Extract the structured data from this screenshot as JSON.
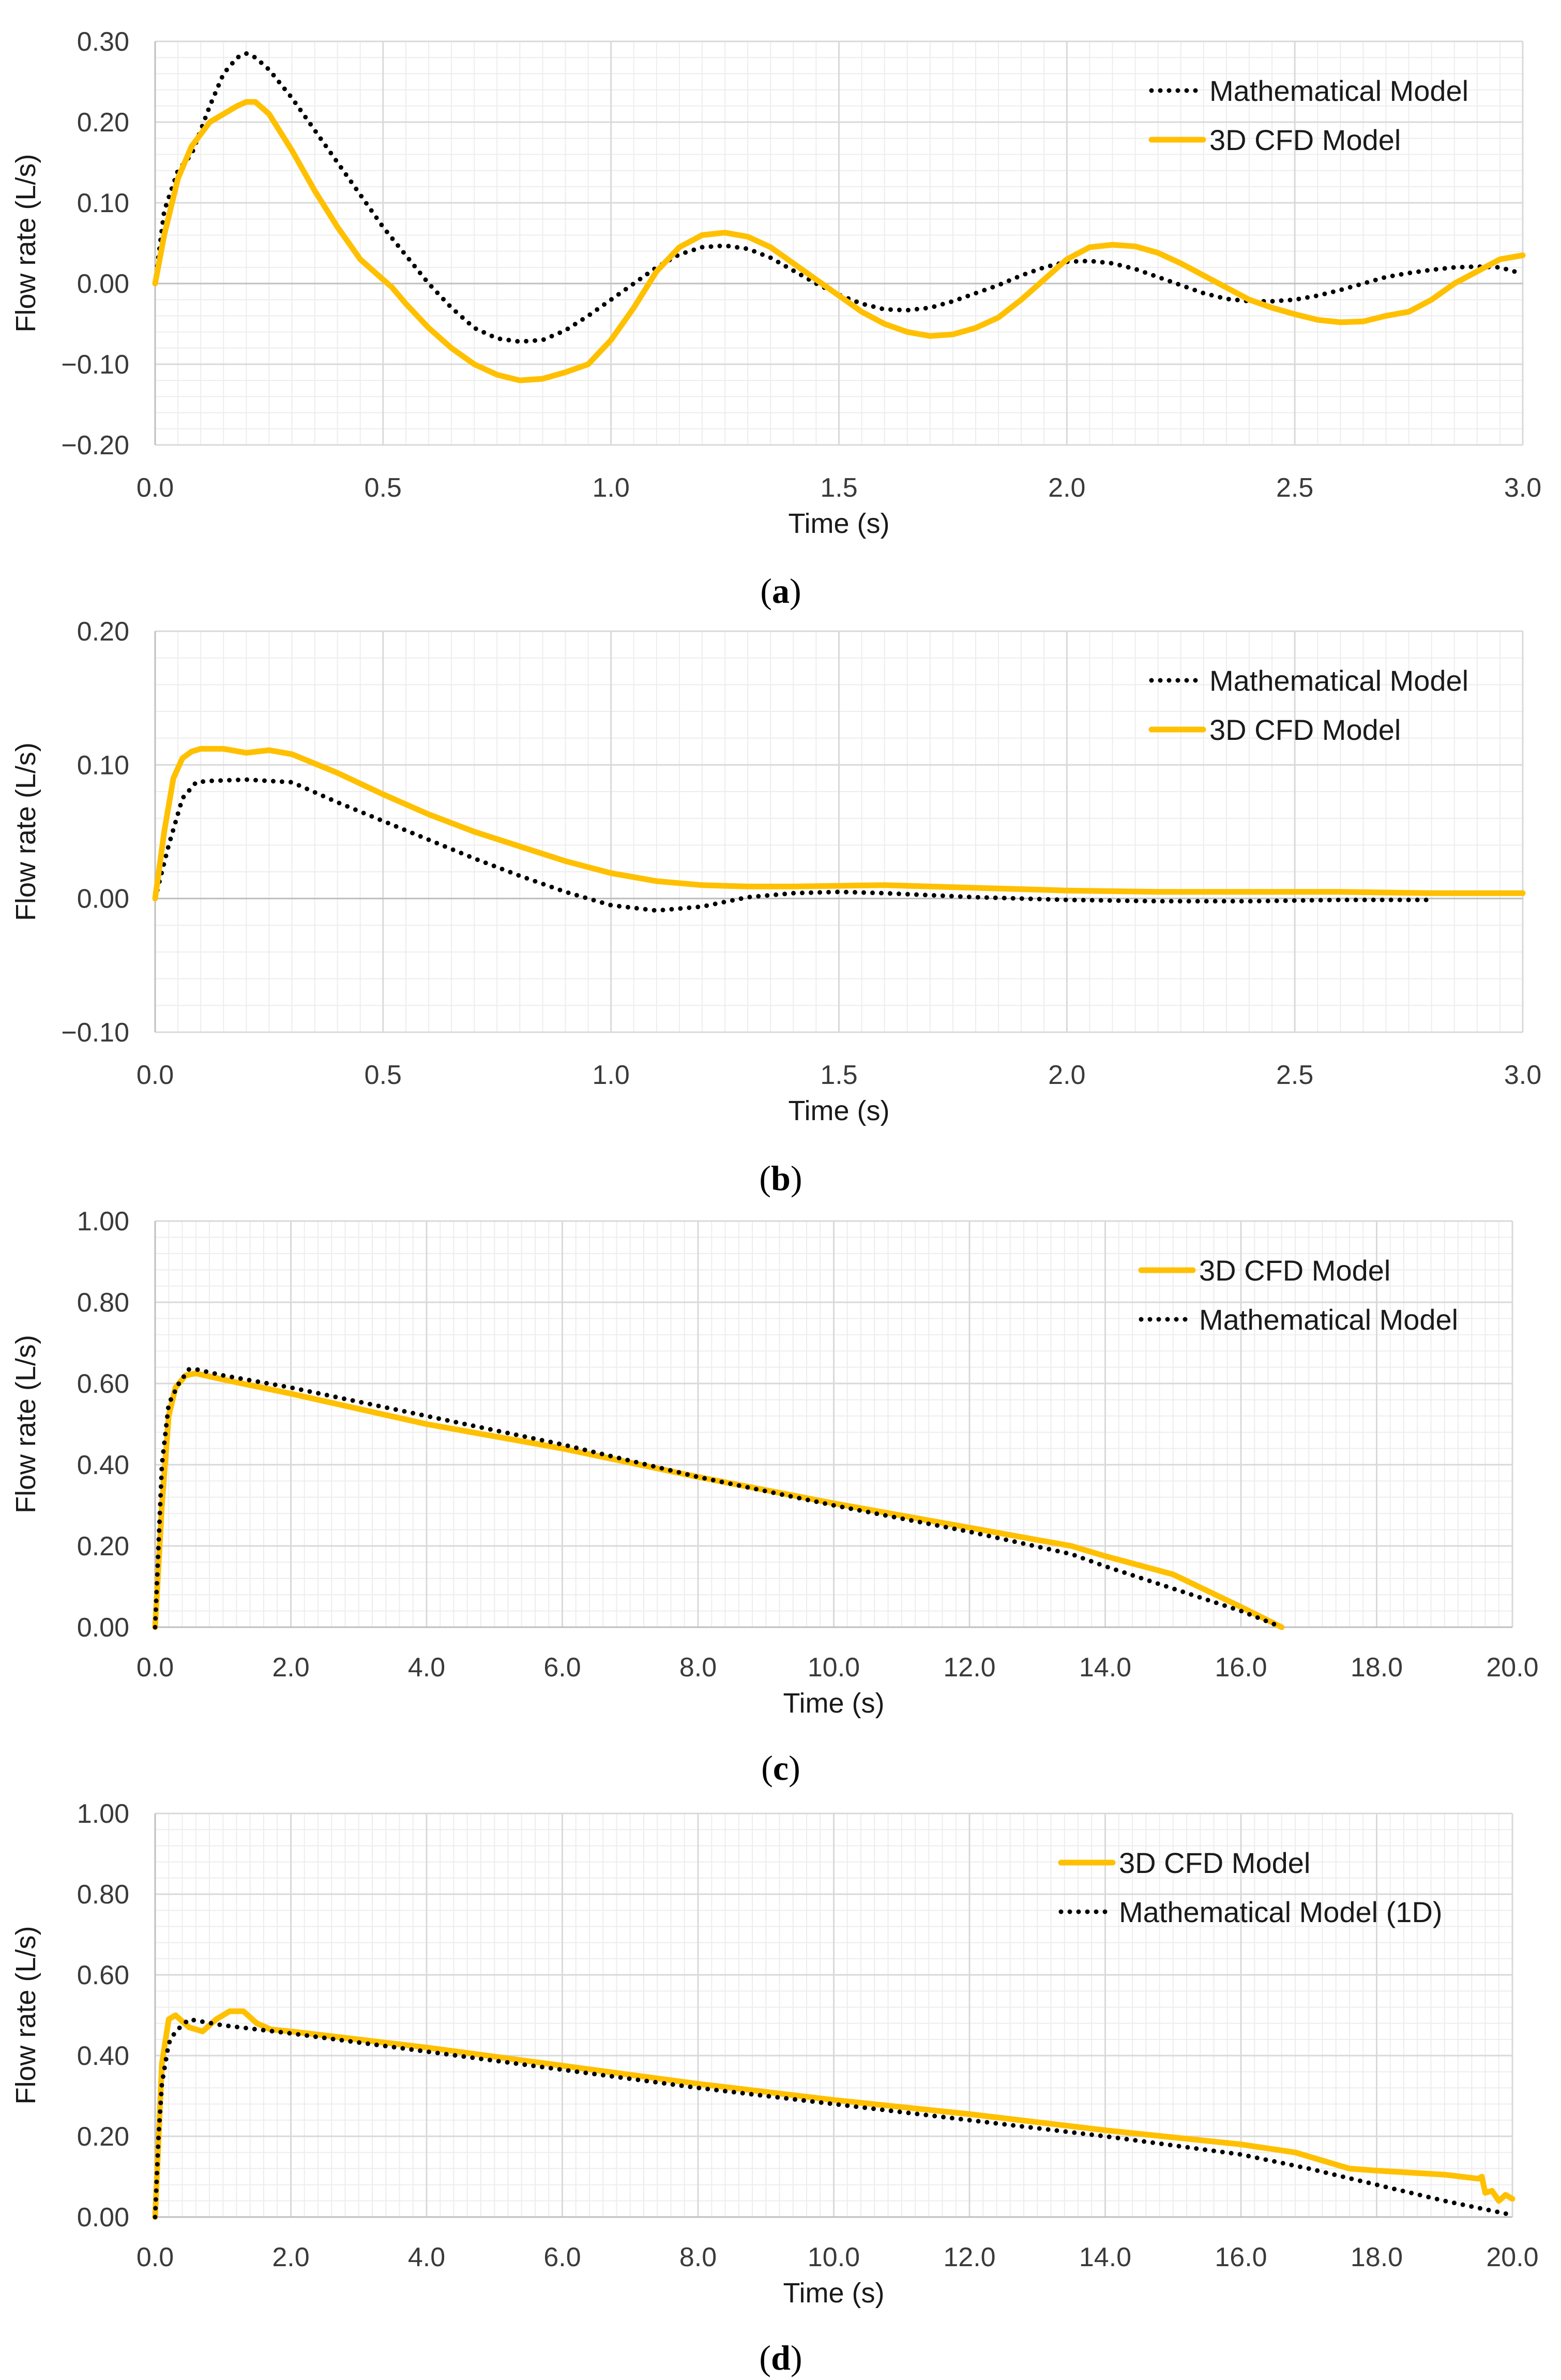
{
  "colors": {
    "cfd": "#FFC000",
    "math": "#000000",
    "grid_major": "#D9D9D9",
    "grid_minor": "#EDEDED",
    "axis": "#BFBFBF"
  },
  "chart_data": [
    {
      "type": "line",
      "caption": "a",
      "xlabel": "Time (s)",
      "ylabel": "Flow rate (L/s)",
      "xlim": [
        0,
        3
      ],
      "ylim": [
        -0.2,
        0.3
      ],
      "xticks": [
        "0.0",
        "0.5",
        "1.0",
        "1.5",
        "2.0",
        "2.5",
        "3.0"
      ],
      "yticks": [
        "−0.20",
        "−0.10",
        "0.00",
        "0.10",
        "0.20",
        "0.30"
      ],
      "legend_position": "top-right",
      "series": [
        {
          "name": "Mathematical Model",
          "style": "dotted",
          "x": [
            0,
            0.02,
            0.05,
            0.08,
            0.12,
            0.15,
            0.18,
            0.2,
            0.22,
            0.25,
            0.3,
            0.35,
            0.4,
            0.45,
            0.5,
            0.55,
            0.6,
            0.65,
            0.7,
            0.75,
            0.8,
            0.85,
            0.9,
            0.95,
            1.0,
            1.05,
            1.1,
            1.15,
            1.2,
            1.25,
            1.3,
            1.35,
            1.4,
            1.45,
            1.5,
            1.55,
            1.6,
            1.65,
            1.7,
            1.75,
            1.8,
            1.85,
            1.9,
            1.95,
            2.0,
            2.05,
            2.1,
            2.15,
            2.2,
            2.25,
            2.3,
            2.35,
            2.4,
            2.45,
            2.5,
            2.55,
            2.6,
            2.65,
            2.7,
            2.75,
            2.8,
            2.85,
            2.9,
            2.95,
            3.0
          ],
          "y": [
            0.0,
            0.09,
            0.14,
            0.16,
            0.22,
            0.26,
            0.28,
            0.285,
            0.28,
            0.265,
            0.23,
            0.19,
            0.15,
            0.11,
            0.07,
            0.035,
            0.0,
            -0.03,
            -0.055,
            -0.068,
            -0.072,
            -0.07,
            -0.058,
            -0.04,
            -0.02,
            0.0,
            0.02,
            0.036,
            0.045,
            0.047,
            0.043,
            0.032,
            0.016,
            0.0,
            -0.014,
            -0.025,
            -0.032,
            -0.033,
            -0.03,
            -0.022,
            -0.012,
            -0.002,
            0.01,
            0.02,
            0.027,
            0.028,
            0.025,
            0.018,
            0.008,
            -0.002,
            -0.012,
            -0.019,
            -0.022,
            -0.022,
            -0.02,
            -0.015,
            -0.008,
            0.0,
            0.008,
            0.013,
            0.017,
            0.02,
            0.021,
            0.02,
            0.012
          ]
        },
        {
          "name": "3D CFD Model",
          "style": "solid",
          "x": [
            0,
            0.02,
            0.05,
            0.08,
            0.12,
            0.15,
            0.18,
            0.2,
            0.22,
            0.25,
            0.3,
            0.35,
            0.4,
            0.45,
            0.5,
            0.52,
            0.55,
            0.6,
            0.65,
            0.7,
            0.75,
            0.8,
            0.85,
            0.9,
            0.95,
            1.0,
            1.05,
            1.1,
            1.15,
            1.2,
            1.25,
            1.3,
            1.35,
            1.4,
            1.45,
            1.5,
            1.55,
            1.6,
            1.65,
            1.7,
            1.75,
            1.8,
            1.85,
            1.9,
            1.95,
            2.0,
            2.05,
            2.1,
            2.15,
            2.2,
            2.25,
            2.3,
            2.35,
            2.4,
            2.45,
            2.5,
            2.55,
            2.6,
            2.65,
            2.7,
            2.75,
            2.8,
            2.85,
            2.9,
            2.95,
            3.0
          ],
          "y": [
            0.0,
            0.06,
            0.13,
            0.17,
            0.2,
            0.21,
            0.22,
            0.225,
            0.225,
            0.21,
            0.165,
            0.115,
            0.07,
            0.03,
            0.005,
            -0.005,
            -0.025,
            -0.055,
            -0.08,
            -0.1,
            -0.113,
            -0.12,
            -0.118,
            -0.11,
            -0.1,
            -0.07,
            -0.03,
            0.015,
            0.045,
            0.06,
            0.063,
            0.058,
            0.045,
            0.025,
            0.005,
            -0.015,
            -0.035,
            -0.05,
            -0.06,
            -0.065,
            -0.063,
            -0.055,
            -0.042,
            -0.02,
            0.005,
            0.03,
            0.045,
            0.048,
            0.046,
            0.038,
            0.025,
            0.01,
            -0.005,
            -0.02,
            -0.03,
            -0.038,
            -0.045,
            -0.048,
            -0.047,
            -0.04,
            -0.035,
            -0.02,
            0.0,
            0.015,
            0.03,
            0.035
          ]
        }
      ]
    },
    {
      "type": "line",
      "caption": "b",
      "xlabel": "Time (s)",
      "ylabel": "Flow rate (L/s)",
      "xlim": [
        0,
        3
      ],
      "ylim": [
        -0.1,
        0.2
      ],
      "xticks": [
        "0.0",
        "0.5",
        "1.0",
        "1.5",
        "2.0",
        "2.5",
        "3.0"
      ],
      "yticks": [
        "−0.10",
        "0.00",
        "0.10",
        "0.20"
      ],
      "legend_position": "top-right",
      "series": [
        {
          "name": "Mathematical Model",
          "style": "dotted",
          "x": [
            0,
            0.03,
            0.06,
            0.09,
            0.12,
            0.2,
            0.3,
            0.4,
            0.5,
            0.6,
            0.7,
            0.8,
            0.9,
            1.0,
            1.1,
            1.2,
            1.3,
            1.4,
            1.5,
            1.6,
            1.8,
            2.0,
            2.2,
            2.4,
            2.6,
            2.8
          ],
          "y": [
            0.0,
            0.04,
            0.075,
            0.087,
            0.088,
            0.089,
            0.087,
            0.072,
            0.058,
            0.044,
            0.03,
            0.017,
            0.005,
            -0.005,
            -0.009,
            -0.006,
            0.001,
            0.004,
            0.005,
            0.004,
            0.001,
            -0.001,
            -0.002,
            -0.002,
            -0.001,
            -0.001
          ]
        },
        {
          "name": "3D CFD Model",
          "style": "solid",
          "x": [
            0,
            0.02,
            0.04,
            0.06,
            0.08,
            0.1,
            0.15,
            0.2,
            0.25,
            0.3,
            0.4,
            0.5,
            0.6,
            0.7,
            0.8,
            0.9,
            1.0,
            1.1,
            1.2,
            1.3,
            1.4,
            1.6,
            1.8,
            2.0,
            2.2,
            2.4,
            2.6,
            2.8,
            3.0
          ],
          "y": [
            0.0,
            0.05,
            0.09,
            0.105,
            0.11,
            0.112,
            0.112,
            0.109,
            0.111,
            0.108,
            0.094,
            0.078,
            0.063,
            0.05,
            0.039,
            0.028,
            0.019,
            0.013,
            0.01,
            0.009,
            0.009,
            0.01,
            0.008,
            0.006,
            0.005,
            0.005,
            0.005,
            0.004,
            0.004
          ]
        }
      ]
    },
    {
      "type": "line",
      "caption": "c",
      "xlabel": "Time (s)",
      "ylabel": "Flow rate (L/s)",
      "xlim": [
        0,
        20
      ],
      "ylim": [
        0,
        1
      ],
      "xticks": [
        "0.0",
        "2.0",
        "4.0",
        "6.0",
        "8.0",
        "10.0",
        "12.0",
        "14.0",
        "16.0",
        "18.0",
        "20.0"
      ],
      "yticks": [
        "0.00",
        "0.20",
        "0.40",
        "0.60",
        "0.80",
        "1.00"
      ],
      "legend_position": "top-right",
      "series": [
        {
          "name": "3D CFD Model",
          "style": "solid",
          "x": [
            0,
            0.1,
            0.2,
            0.3,
            0.45,
            0.6,
            1.0,
            2.0,
            4.0,
            6.0,
            8.0,
            10.0,
            12.0,
            13.5,
            14.0,
            15.0,
            16.0,
            16.6
          ],
          "y": [
            0.0,
            0.3,
            0.52,
            0.59,
            0.62,
            0.625,
            0.61,
            0.575,
            0.5,
            0.44,
            0.37,
            0.305,
            0.245,
            0.2,
            0.175,
            0.13,
            0.05,
            0.0
          ]
        },
        {
          "name": "Mathematical Model",
          "style": "dotted",
          "x": [
            0,
            0.1,
            0.2,
            0.35,
            0.5,
            0.6,
            1.0,
            2.0,
            4.0,
            6.0,
            8.0,
            10.0,
            12.0,
            13.5,
            14.0,
            15.0,
            16.0,
            16.6
          ],
          "y": [
            0.0,
            0.4,
            0.55,
            0.6,
            0.635,
            0.635,
            0.62,
            0.59,
            0.52,
            0.45,
            0.37,
            0.3,
            0.235,
            0.18,
            0.15,
            0.095,
            0.04,
            0.0
          ]
        }
      ]
    },
    {
      "type": "line",
      "caption": "d",
      "xlabel": "Time (s)",
      "ylabel": "Flow rate (L/s)",
      "xlim": [
        0,
        20
      ],
      "ylim": [
        0,
        1
      ],
      "xticks": [
        "0.0",
        "2.0",
        "4.0",
        "6.0",
        "8.0",
        "10.0",
        "12.0",
        "14.0",
        "16.0",
        "18.0",
        "20.0"
      ],
      "yticks": [
        "0.00",
        "0.20",
        "0.40",
        "0.60",
        "0.80",
        "1.00"
      ],
      "legend_position": "top-right",
      "series": [
        {
          "name": "3D CFD Model",
          "style": "solid",
          "x": [
            0,
            0.1,
            0.2,
            0.3,
            0.5,
            0.7,
            0.9,
            1.1,
            1.3,
            1.5,
            1.7,
            2.0,
            4.0,
            6.0,
            8.0,
            10.0,
            12.0,
            14.0,
            16.0,
            16.8,
            17.2,
            17.6,
            18.0,
            19.0,
            19.5,
            19.55,
            19.6,
            19.7,
            19.8,
            19.9,
            20.0
          ],
          "y": [
            0.0,
            0.38,
            0.49,
            0.5,
            0.47,
            0.46,
            0.49,
            0.51,
            0.51,
            0.48,
            0.465,
            0.46,
            0.42,
            0.375,
            0.33,
            0.29,
            0.255,
            0.215,
            0.18,
            0.16,
            0.14,
            0.12,
            0.115,
            0.105,
            0.095,
            0.1,
            0.06,
            0.065,
            0.04,
            0.055,
            0.045
          ]
        },
        {
          "name": "Mathematical Model (1D)",
          "style": "dotted",
          "x": [
            0,
            0.05,
            0.1,
            0.2,
            0.3,
            0.5,
            1.0,
            2.0,
            4.0,
            6.0,
            8.0,
            10.0,
            12.0,
            14.0,
            16.0,
            17.0,
            18.0,
            19.0,
            20.0
          ],
          "y": [
            0.0,
            0.2,
            0.33,
            0.43,
            0.46,
            0.49,
            0.475,
            0.455,
            0.41,
            0.365,
            0.32,
            0.28,
            0.24,
            0.2,
            0.155,
            0.12,
            0.08,
            0.04,
            0.005
          ]
        }
      ]
    }
  ]
}
